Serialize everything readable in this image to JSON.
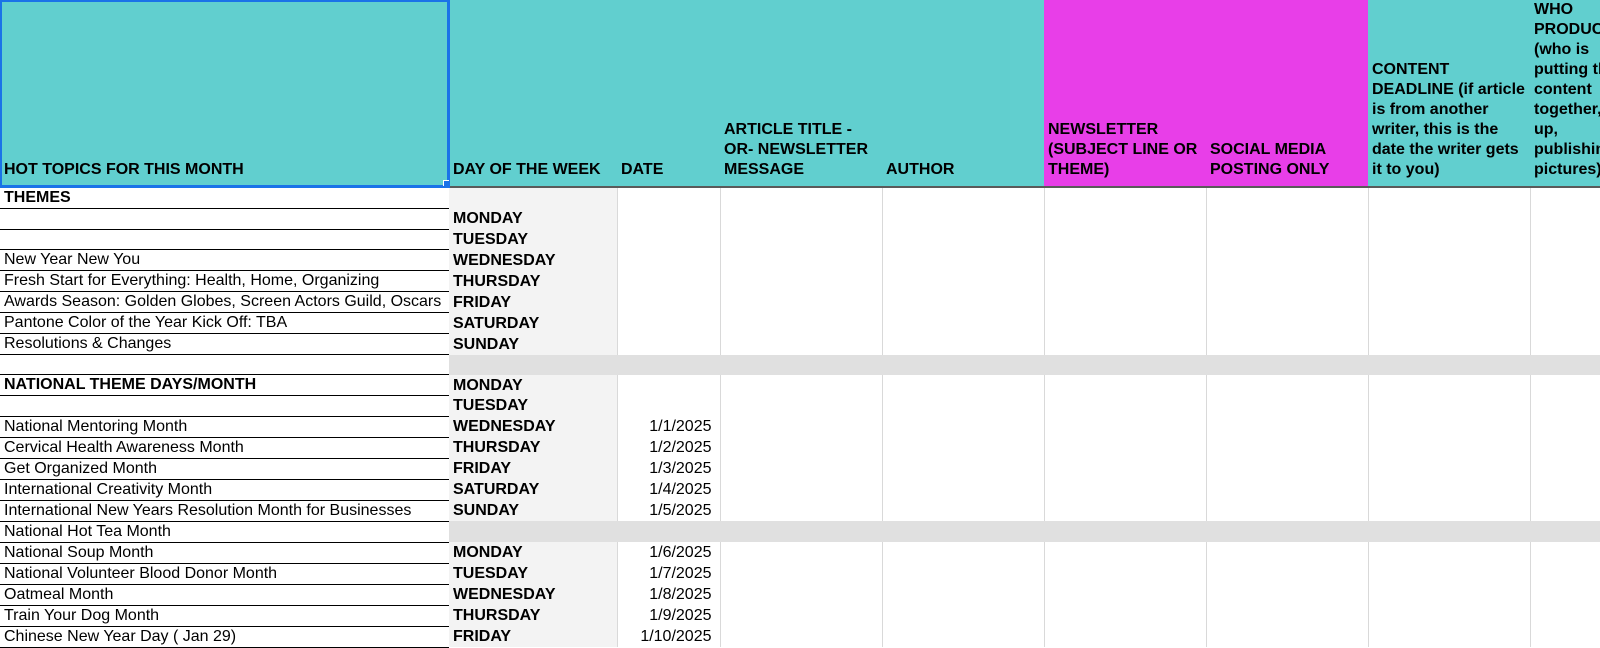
{
  "header": {
    "columns": [
      {
        "label": "HOT TOPICS FOR THIS MONTH",
        "color": "teal",
        "selected": true
      },
      {
        "label": "DAY OF THE WEEK",
        "color": "teal"
      },
      {
        "label": "DATE",
        "color": "teal"
      },
      {
        "label": "ARTICLE TITLE\n-OR- NEWSLETTER MESSAGE",
        "color": "teal"
      },
      {
        "label": "AUTHOR",
        "color": "teal"
      },
      {
        "label": "NEWSLETTER (SUBJECT LINE OR THEME)",
        "color": "magenta"
      },
      {
        "label": "SOCIAL MEDIA POSTING ONLY",
        "color": "magenta"
      },
      {
        "label": "CONTENT DEADLINE (if article is from another writer, this is the date the writer gets it to you)",
        "color": "teal"
      },
      {
        "label": "WHO PRODUCES (who is putting the content together, up, publishing, pictures)",
        "color": "teal"
      }
    ]
  },
  "rows": [
    {
      "type": "section",
      "topic": "THEMES",
      "day": "",
      "date": ""
    },
    {
      "type": "item",
      "topic": "",
      "day": "MONDAY",
      "date": ""
    },
    {
      "type": "item",
      "topic": "",
      "day": "TUESDAY",
      "date": ""
    },
    {
      "type": "item",
      "topic": "New Year New You",
      "day": "WEDNESDAY",
      "date": ""
    },
    {
      "type": "item",
      "topic": "Fresh Start for Everything: Health, Home, Organizing",
      "day": "THURSDAY",
      "date": ""
    },
    {
      "type": "item",
      "topic": "Awards Season: Golden Globes, Screen Actors Guild, Oscars",
      "day": "FRIDAY",
      "date": ""
    },
    {
      "type": "item",
      "topic": "Pantone Color of the Year Kick Off: TBA",
      "day": "SATURDAY",
      "date": ""
    },
    {
      "type": "item",
      "topic": "Resolutions & Changes",
      "day": "SUNDAY",
      "date": ""
    },
    {
      "type": "spacer"
    },
    {
      "type": "section",
      "topic": "NATIONAL THEME DAYS/MONTH",
      "day": "MONDAY",
      "date": ""
    },
    {
      "type": "item",
      "topic": "",
      "day": "TUESDAY",
      "date": ""
    },
    {
      "type": "item",
      "topic": "National Mentoring Month",
      "day": "WEDNESDAY",
      "date": "1/1/2025"
    },
    {
      "type": "item",
      "topic": "Cervical Health Awareness Month",
      "day": "THURSDAY",
      "date": "1/2/2025"
    },
    {
      "type": "item",
      "topic": "Get Organized Month",
      "day": "FRIDAY",
      "date": "1/3/2025"
    },
    {
      "type": "item",
      "topic": "International Creativity Month",
      "day": "SATURDAY",
      "date": "1/4/2025"
    },
    {
      "type": "item",
      "topic": "International New Years Resolution Month for Businesses",
      "day": "SUNDAY",
      "date": "1/5/2025"
    },
    {
      "type": "spacer-withtopic",
      "topic": "National Hot Tea Month"
    },
    {
      "type": "item",
      "topic": "National Soup Month",
      "day": "MONDAY",
      "date": "1/6/2025"
    },
    {
      "type": "item",
      "topic": "National Volunteer Blood Donor Month",
      "day": "TUESDAY",
      "date": "1/7/2025"
    },
    {
      "type": "item",
      "topic": "Oatmeal Month",
      "day": "WEDNESDAY",
      "date": "1/8/2025"
    },
    {
      "type": "item",
      "topic": "Train Your Dog Month",
      "day": "THURSDAY",
      "date": "1/9/2025"
    },
    {
      "type": "item",
      "topic": "Chinese New Year Day ( Jan 29)",
      "day": "FRIDAY",
      "date": "1/10/2025"
    }
  ],
  "colors": {
    "teal": "#61cfcf",
    "magenta": "#e83ee8",
    "day_bg": "#f3f3f3",
    "spacer_bg": "#e0e0e0",
    "selection": "#1a73e8"
  }
}
